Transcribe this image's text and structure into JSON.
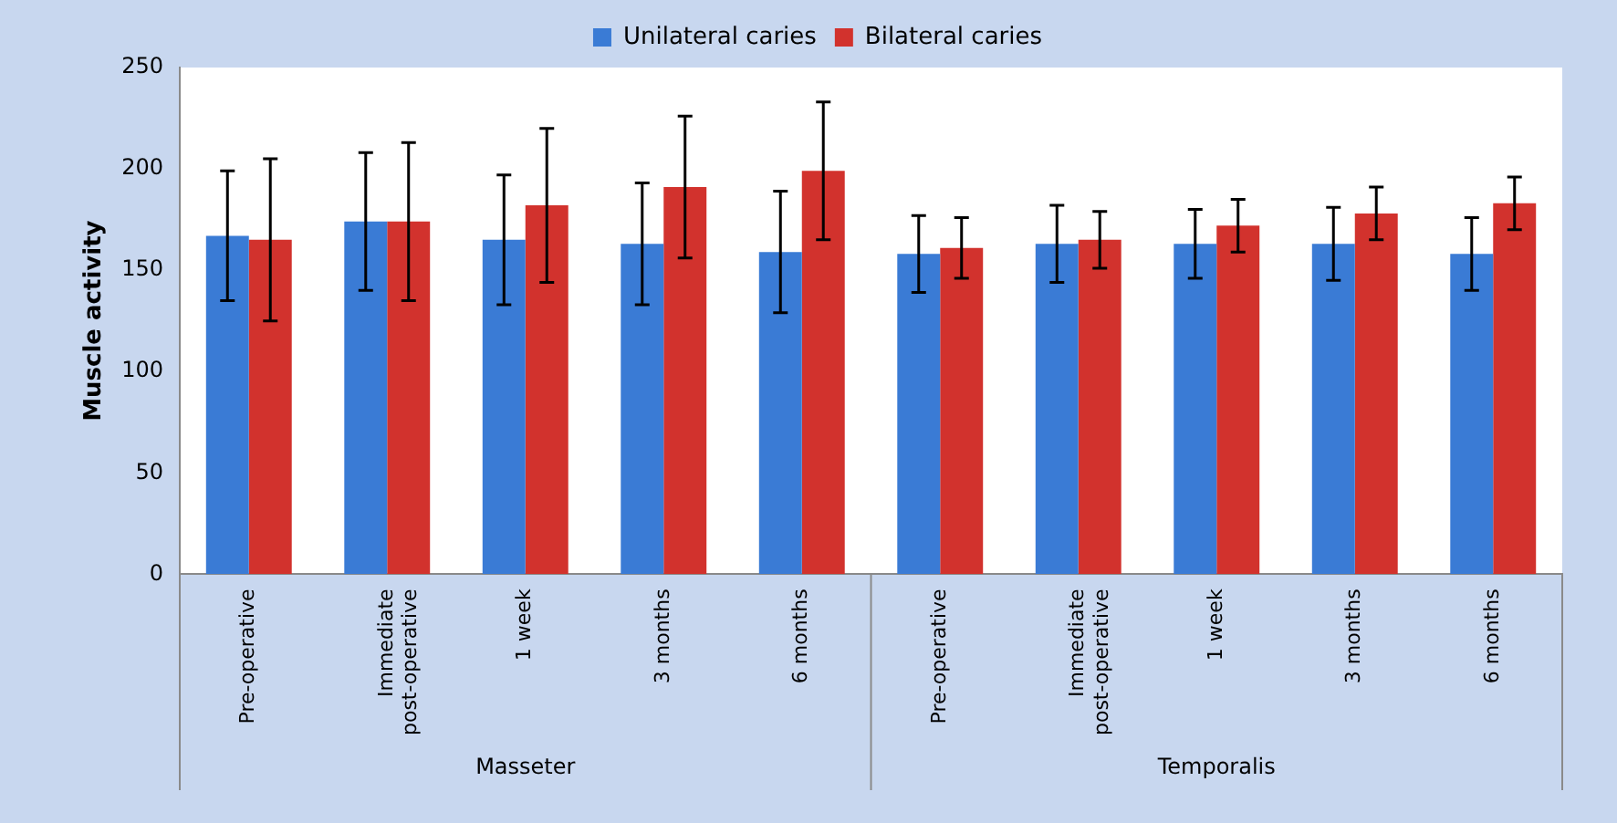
{
  "chart_data": {
    "type": "bar",
    "ylabel": "Muscle activity",
    "categories": [
      "Pre-operative",
      "Immediate post-operative",
      "1 week",
      "3 months",
      "6 months",
      "Pre-operative",
      "Immediate post-operative",
      "1 week",
      "3 months",
      "6 months"
    ],
    "series": [
      {
        "name": "Unilateral caries",
        "color": "#3a7bd5",
        "values": [
          167,
          174,
          165,
          163,
          159,
          158,
          163,
          163,
          163,
          158
        ],
        "errors": [
          32,
          34,
          32,
          30,
          30,
          19,
          19,
          17,
          18,
          18
        ]
      },
      {
        "name": "Bilateral caries",
        "color": "#d2322d",
        "values": [
          165,
          174,
          182,
          191,
          199,
          161,
          165,
          172,
          178,
          183
        ],
        "errors": [
          40,
          39,
          38,
          35,
          34,
          15,
          14,
          13,
          13,
          13
        ]
      }
    ],
    "ylim": [
      0,
      250
    ],
    "yticks": [
      0,
      50,
      100,
      150,
      200,
      250
    ],
    "grid": false,
    "legend": "top",
    "annotations": [
      "Masseter",
      "Temporalis"
    ]
  }
}
